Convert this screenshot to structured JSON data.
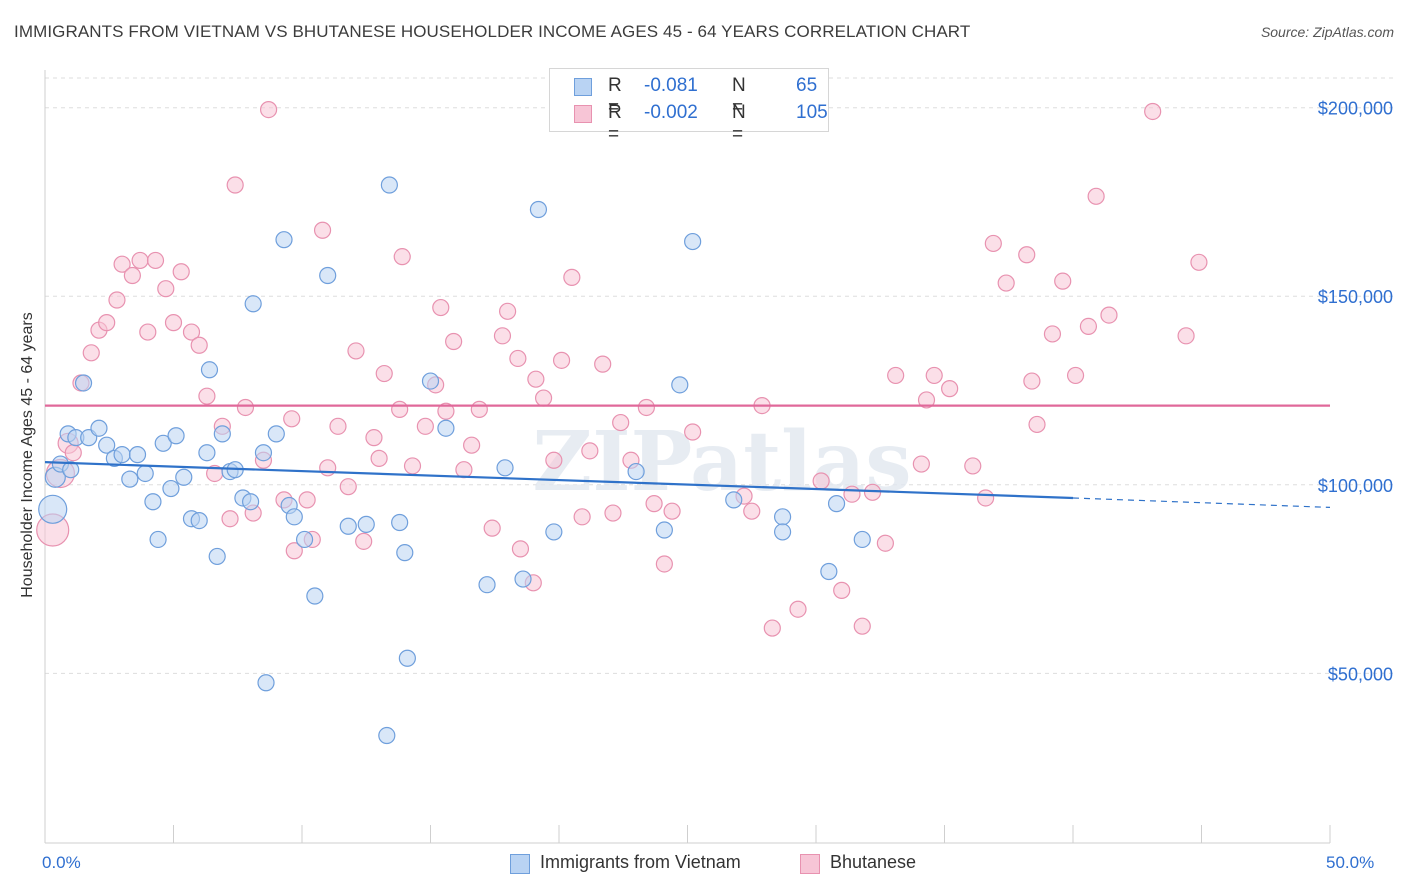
{
  "header": {
    "title": "IMMIGRANTS FROM VIETNAM VS BHUTANESE HOUSEHOLDER INCOME AGES 45 - 64 YEARS CORRELATION CHART",
    "source": "Source: ZipAtlas.com"
  },
  "legend": {
    "rows": [
      {
        "r_label": "R =",
        "r_value": "-0.081",
        "n_label": "N =",
        "n_value": "65"
      },
      {
        "r_label": "R =",
        "r_value": "-0.002",
        "n_label": "N =",
        "n_value": "105"
      }
    ]
  },
  "colors": {
    "series_a_fill": "#b9d3f3",
    "series_a_stroke": "#6f9fdc",
    "series_a_line": "#2f72c9",
    "series_b_fill": "#f7c5d6",
    "series_b_stroke": "#e892b0",
    "series_b_line": "#e0689a",
    "axis_label_blue": "#2f6fd0",
    "grid": "#dddddd"
  },
  "chart_data": {
    "type": "scatter",
    "title": "IMMIGRANTS FROM VIETNAM VS BHUTANESE HOUSEHOLDER INCOME AGES 45 - 64 YEARS CORRELATION CHART",
    "xlabel": "",
    "ylabel": "Householder Income Ages 45 - 64 years",
    "xlim": [
      0,
      50
    ],
    "ylim": [
      5000,
      210000
    ],
    "x_tick_labels": [
      "0.0%",
      "50.0%"
    ],
    "y_ticks": [
      50000,
      100000,
      150000,
      200000
    ],
    "y_tick_labels": [
      "$50,000",
      "$100,000",
      "$150,000",
      "$200,000"
    ],
    "grid": true,
    "watermark": "ZIPatlas",
    "series": [
      {
        "name": "Immigrants from Vietnam",
        "trend": {
          "x0": 0,
          "y0": 106000,
          "x1": 40,
          "y1": 96500,
          "dashed_to_x": 50,
          "dashed_to_y": 94000
        },
        "points": [
          [
            0.3,
            93500,
            14
          ],
          [
            0.4,
            102000,
            10
          ],
          [
            0.6,
            105500,
            8
          ],
          [
            0.9,
            113500,
            8
          ],
          [
            1.0,
            104000,
            8
          ],
          [
            1.2,
            112500,
            8
          ],
          [
            1.5,
            127000,
            8
          ],
          [
            1.7,
            112500,
            8
          ],
          [
            2.1,
            115000,
            8
          ],
          [
            2.4,
            110500,
            8
          ],
          [
            2.7,
            107000,
            8
          ],
          [
            3.0,
            108000,
            8
          ],
          [
            3.3,
            101500,
            8
          ],
          [
            3.6,
            108000,
            8
          ],
          [
            3.9,
            103000,
            8
          ],
          [
            4.2,
            95500,
            8
          ],
          [
            4.4,
            85500,
            8
          ],
          [
            4.6,
            111000,
            8
          ],
          [
            4.9,
            99000,
            8
          ],
          [
            5.1,
            113000,
            8
          ],
          [
            5.4,
            102000,
            8
          ],
          [
            5.7,
            91000,
            8
          ],
          [
            6.0,
            90500,
            8
          ],
          [
            6.3,
            108500,
            8
          ],
          [
            6.4,
            130500,
            8
          ],
          [
            6.7,
            81000,
            8
          ],
          [
            6.9,
            113500,
            8
          ],
          [
            7.2,
            103500,
            8
          ],
          [
            7.4,
            104000,
            8
          ],
          [
            7.7,
            96500,
            8
          ],
          [
            8.0,
            95500,
            8
          ],
          [
            8.1,
            148000,
            8
          ],
          [
            8.5,
            108500,
            8
          ],
          [
            8.6,
            47500,
            8
          ],
          [
            9.0,
            113500,
            8
          ],
          [
            9.3,
            165000,
            8
          ],
          [
            9.5,
            94500,
            8
          ],
          [
            9.7,
            91500,
            8
          ],
          [
            10.1,
            85500,
            8
          ],
          [
            10.5,
            70500,
            8
          ],
          [
            11.0,
            155500,
            8
          ],
          [
            11.8,
            89000,
            8
          ],
          [
            12.5,
            89500,
            8
          ],
          [
            13.3,
            33500,
            8
          ],
          [
            13.4,
            179500,
            8
          ],
          [
            13.8,
            90000,
            8
          ],
          [
            14.0,
            82000,
            8
          ],
          [
            14.1,
            54000,
            8
          ],
          [
            15.0,
            127500,
            8
          ],
          [
            15.6,
            115000,
            8
          ],
          [
            17.2,
            73500,
            8
          ],
          [
            17.9,
            104500,
            8
          ],
          [
            18.6,
            75000,
            8
          ],
          [
            19.2,
            173000,
            8
          ],
          [
            19.8,
            87500,
            8
          ],
          [
            23.0,
            103500,
            8
          ],
          [
            24.1,
            88000,
            8
          ],
          [
            24.7,
            126500,
            8
          ],
          [
            25.2,
            164500,
            8
          ],
          [
            26.8,
            96000,
            8
          ],
          [
            28.7,
            91500,
            8
          ],
          [
            28.7,
            87500,
            8
          ],
          [
            30.5,
            77000,
            8
          ],
          [
            30.8,
            95000,
            8
          ],
          [
            31.8,
            85500,
            8
          ]
        ]
      },
      {
        "name": "Bhutanese",
        "trend": {
          "x0": 0,
          "y0": 121000,
          "x1": 50,
          "y1": 121000
        },
        "points": [
          [
            0.3,
            88000,
            16
          ],
          [
            0.6,
            103000,
            14
          ],
          [
            0.9,
            111000,
            10
          ],
          [
            1.1,
            108500,
            8
          ],
          [
            1.4,
            127000,
            8
          ],
          [
            1.8,
            135000,
            8
          ],
          [
            2.1,
            141000,
            8
          ],
          [
            2.4,
            143000,
            8
          ],
          [
            2.8,
            149000,
            8
          ],
          [
            3.0,
            158500,
            8
          ],
          [
            3.4,
            155500,
            8
          ],
          [
            3.7,
            159500,
            8
          ],
          [
            4.0,
            140500,
            8
          ],
          [
            4.3,
            159500,
            8
          ],
          [
            4.7,
            152000,
            8
          ],
          [
            5.0,
            143000,
            8
          ],
          [
            5.3,
            156500,
            8
          ],
          [
            5.7,
            140500,
            8
          ],
          [
            6.0,
            137000,
            8
          ],
          [
            6.3,
            123500,
            8
          ],
          [
            6.6,
            103000,
            8
          ],
          [
            6.9,
            115500,
            8
          ],
          [
            7.2,
            91000,
            8
          ],
          [
            7.4,
            179500,
            8
          ],
          [
            7.8,
            120500,
            8
          ],
          [
            8.1,
            92500,
            8
          ],
          [
            8.5,
            106500,
            8
          ],
          [
            8.7,
            199500,
            8
          ],
          [
            9.3,
            96000,
            8
          ],
          [
            9.6,
            117500,
            8
          ],
          [
            9.7,
            82500,
            8
          ],
          [
            10.2,
            96000,
            8
          ],
          [
            10.4,
            85500,
            8
          ],
          [
            10.8,
            167500,
            8
          ],
          [
            11.0,
            104500,
            8
          ],
          [
            11.4,
            115500,
            8
          ],
          [
            11.8,
            99500,
            8
          ],
          [
            12.1,
            135500,
            8
          ],
          [
            12.4,
            85000,
            8
          ],
          [
            12.8,
            112500,
            8
          ],
          [
            13.0,
            107000,
            8
          ],
          [
            13.2,
            129500,
            8
          ],
          [
            13.8,
            120000,
            8
          ],
          [
            13.9,
            160500,
            8
          ],
          [
            14.3,
            105000,
            8
          ],
          [
            14.8,
            115500,
            8
          ],
          [
            15.2,
            126500,
            8
          ],
          [
            15.4,
            147000,
            8
          ],
          [
            15.6,
            119500,
            8
          ],
          [
            15.9,
            138000,
            8
          ],
          [
            16.3,
            104000,
            8
          ],
          [
            16.6,
            110500,
            8
          ],
          [
            16.9,
            120000,
            8
          ],
          [
            17.4,
            88500,
            8
          ],
          [
            17.8,
            139500,
            8
          ],
          [
            18.0,
            146000,
            8
          ],
          [
            18.4,
            133500,
            8
          ],
          [
            18.5,
            83000,
            8
          ],
          [
            19.1,
            128000,
            8
          ],
          [
            19.0,
            74000,
            8
          ],
          [
            19.4,
            123000,
            8
          ],
          [
            19.8,
            106500,
            8
          ],
          [
            20.1,
            133000,
            8
          ],
          [
            20.5,
            155000,
            8
          ],
          [
            20.9,
            91500,
            8
          ],
          [
            21.2,
            109000,
            8
          ],
          [
            21.7,
            132000,
            8
          ],
          [
            22.1,
            92500,
            8
          ],
          [
            22.4,
            116500,
            8
          ],
          [
            22.8,
            106500,
            8
          ],
          [
            23.4,
            120500,
            8
          ],
          [
            23.7,
            95000,
            8
          ],
          [
            24.1,
            79000,
            8
          ],
          [
            24.4,
            93000,
            8
          ],
          [
            25.2,
            114000,
            8
          ],
          [
            27.2,
            97000,
            8
          ],
          [
            27.5,
            93000,
            8
          ],
          [
            27.9,
            121000,
            8
          ],
          [
            28.3,
            62000,
            8
          ],
          [
            29.3,
            67000,
            8
          ],
          [
            30.2,
            101000,
            8
          ],
          [
            31.0,
            72000,
            8
          ],
          [
            31.4,
            97500,
            8
          ],
          [
            31.8,
            62500,
            8
          ],
          [
            32.2,
            98000,
            8
          ],
          [
            32.7,
            84500,
            8
          ],
          [
            33.1,
            129000,
            8
          ],
          [
            34.1,
            105500,
            8
          ],
          [
            34.3,
            122500,
            8
          ],
          [
            34.6,
            129000,
            8
          ],
          [
            35.2,
            125500,
            8
          ],
          [
            36.1,
            105000,
            8
          ],
          [
            36.6,
            96500,
            8
          ],
          [
            36.9,
            164000,
            8
          ],
          [
            37.4,
            153500,
            8
          ],
          [
            38.2,
            161000,
            8
          ],
          [
            38.4,
            127500,
            8
          ],
          [
            38.6,
            116000,
            8
          ],
          [
            39.2,
            140000,
            8
          ],
          [
            39.6,
            154000,
            8
          ],
          [
            40.1,
            129000,
            8
          ],
          [
            40.6,
            142000,
            8
          ],
          [
            40.9,
            176500,
            8
          ],
          [
            41.4,
            145000,
            8
          ],
          [
            43.1,
            199000,
            8
          ],
          [
            44.4,
            139500,
            8
          ],
          [
            44.9,
            159000,
            8
          ]
        ]
      }
    ]
  },
  "bottom_legend": [
    {
      "label": "Immigrants from Vietnam"
    },
    {
      "label": "Bhutanese"
    }
  ]
}
